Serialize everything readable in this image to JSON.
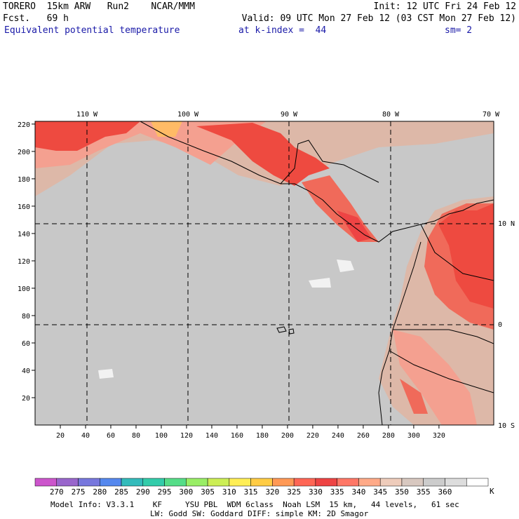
{
  "header": {
    "line1_left": "TORERO  15km ARW   Run2    NCAR/MMM",
    "line1_right": "Init: 12 UTC Fri 24 Feb 12",
    "line2_left": "Fcst.   69 h",
    "line2_right": "Valid: 09 UTC Mon 27 Feb 12 (03 CST Mon 27 Feb 12)",
    "line3_field": "Equivalent potential temperature",
    "line3_level": "at k-index =  44",
    "line3_sm": "sm= 2"
  },
  "map": {
    "lon_labels": [
      "110 W",
      "100 W",
      "90 W",
      "80 W",
      "70 W"
    ],
    "lat_labels": [
      "10 N",
      "0",
      "10 S"
    ],
    "x_ticks": [
      "20",
      "40",
      "60",
      "80",
      "100",
      "120",
      "140",
      "160",
      "180",
      "200",
      "220",
      "240",
      "260",
      "280",
      "300",
      "320"
    ],
    "y_ticks": [
      "20",
      "40",
      "60",
      "80",
      "100",
      "120",
      "140",
      "160",
      "180",
      "200",
      "220"
    ],
    "ocean_color": "#c8c8c8",
    "land_color": "#ddb8a8",
    "warm_color": "#f06a5a",
    "hot_color": "#ee4a40"
  },
  "colorbar": {
    "colors": [
      "#cc55cc",
      "#9966cc",
      "#7777dd",
      "#5588ee",
      "#33bbbb",
      "#33ccaa",
      "#55dd88",
      "#99ee66",
      "#ccee55",
      "#ffee55",
      "#ffcc44",
      "#ff9955",
      "#ff6655",
      "#ee4444",
      "#ff7766",
      "#ffaa88",
      "#eeccbb",
      "#d8c8c0",
      "#cccccc",
      "#dddddd",
      "#ffffff"
    ],
    "labels": [
      "270",
      "275",
      "280",
      "285",
      "290",
      "295",
      "300",
      "305",
      "310",
      "315",
      "320",
      "325",
      "330",
      "335",
      "340",
      "345",
      "350",
      "355",
      "360"
    ],
    "unit": "K"
  },
  "footer": {
    "line1": "Model Info: V3.3.1    KF     YSU PBL  WDM 6class  Noah LSM  15 km,   44 levels,   61 sec",
    "line2": "LW: Godd SW: Goddard DIFF: simple KM: 2D Smagor"
  }
}
